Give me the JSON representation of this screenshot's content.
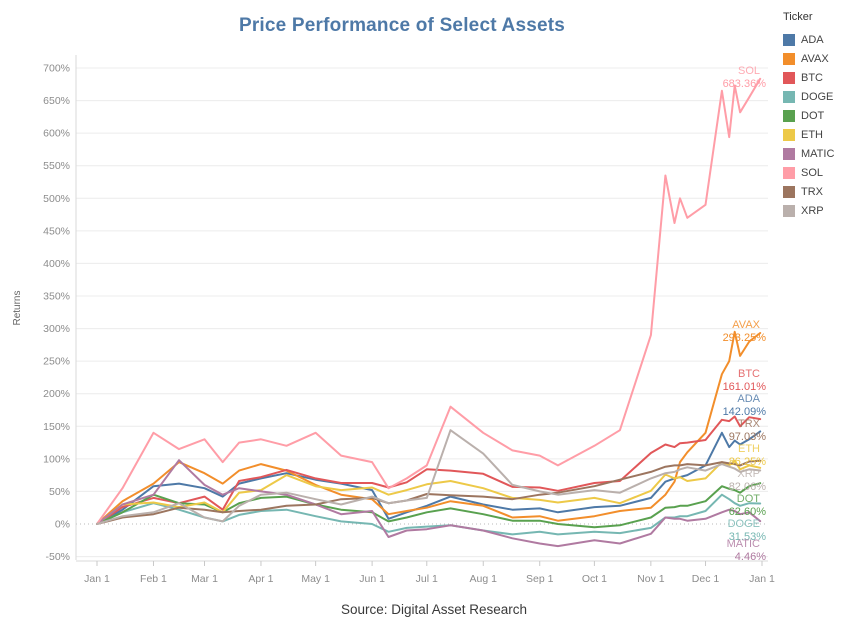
{
  "title": "Price Performance of Select Assets",
  "source": "Source: Digital Asset Research",
  "legend": {
    "title": "Ticker"
  },
  "chart_data": {
    "type": "line",
    "title": "Price Performance of Select Assets",
    "xlabel": "",
    "ylabel": "Returns",
    "legend_position": "top-right",
    "grid": "horizontal gridlines every 50%, dotted line at 0%",
    "ylim": [
      -75,
      720
    ],
    "y_tick_values": [
      700,
      650,
      600,
      550,
      500,
      450,
      400,
      350,
      300,
      250,
      200,
      150,
      100,
      50,
      0,
      -50
    ],
    "y_tick_labels": [
      "700%",
      "650%",
      "600%",
      "550%",
      "500%",
      "450%",
      "400%",
      "350%",
      "300%",
      "250%",
      "200%",
      "150%",
      "100%",
      "50%",
      "0%",
      "-50%"
    ],
    "x_tick_labels": [
      "Jan 1",
      "Feb 1",
      "Mar 1",
      "Apr 1",
      "May 1",
      "Jun 1",
      "Jul 1",
      "Aug 1",
      "Sep 1",
      "Oct 1",
      "Nov 1",
      "Dec 1",
      "Jan 1"
    ],
    "x_tick_days": [
      0,
      31,
      59,
      90,
      120,
      151,
      181,
      212,
      243,
      273,
      304,
      334,
      365
    ],
    "x": [
      "Jan 1",
      "Jan 15",
      "Feb 1",
      "Feb 15",
      "Mar 1",
      "Mar 11",
      "Mar 20",
      "Apr 1",
      "Apr 15",
      "May 1",
      "May 15",
      "Jun 1",
      "Jun 10",
      "Jun 20",
      "Jul 1",
      "Jul 14",
      "Aug 1",
      "Aug 17",
      "Sep 1",
      "Sep 11",
      "Oct 1",
      "Oct 15",
      "Nov 1",
      "Nov 9",
      "Nov 14",
      "Nov 17",
      "Nov 21",
      "Dec 1",
      "Dec 10",
      "Dec 14",
      "Dec 17",
      "Dec 20",
      "Dec 25",
      "Dec 31"
    ],
    "x_days": [
      0,
      14,
      31,
      45,
      59,
      69,
      78,
      90,
      104,
      120,
      134,
      151,
      160,
      170,
      181,
      194,
      212,
      228,
      243,
      253,
      273,
      287,
      304,
      312,
      317,
      320,
      324,
      334,
      343,
      347,
      350,
      353,
      358,
      364
    ],
    "units": "percent return since Jan 1",
    "series": [
      {
        "name": "ADA",
        "color": "#4e79a7",
        "end_label": "142.09%",
        "end_value": 142.09,
        "values": [
          0,
          22,
          58,
          62,
          55,
          42,
          62,
          70,
          78,
          68,
          62,
          52,
          8,
          18,
          28,
          42,
          30,
          22,
          24,
          18,
          26,
          28,
          40,
          65,
          70,
          72,
          75,
          90,
          140,
          118,
          128,
          122,
          130,
          142.09
        ]
      },
      {
        "name": "AVAX",
        "color": "#f28e2b",
        "end_label": "293.25%",
        "end_value": 293.25,
        "values": [
          0,
          35,
          62,
          95,
          78,
          62,
          82,
          92,
          82,
          60,
          45,
          38,
          15,
          20,
          25,
          35,
          28,
          10,
          12,
          5,
          12,
          20,
          25,
          45,
          65,
          95,
          110,
          140,
          230,
          250,
          295,
          258,
          280,
          293.25
        ]
      },
      {
        "name": "BTC",
        "color": "#e15759",
        "end_label": "161.01%",
        "end_value": 161.01,
        "values": [
          0,
          26,
          40,
          32,
          42,
          22,
          66,
          72,
          83,
          70,
          63,
          63,
          56,
          64,
          84,
          82,
          77,
          57,
          56,
          51,
          63,
          66,
          109,
          122,
          118,
          124,
          125,
          129,
          160,
          158,
          165,
          150,
          164,
          161.01
        ]
      },
      {
        "name": "DOGE",
        "color": "#76b7b2",
        "end_label": "31.53%",
        "end_value": 31.53,
        "values": [
          0,
          18,
          32,
          22,
          10,
          4,
          14,
          20,
          22,
          12,
          4,
          0,
          -12,
          -6,
          -4,
          -2,
          -10,
          -16,
          -12,
          -16,
          -12,
          -14,
          -6,
          10,
          10,
          12,
          12,
          20,
          45,
          38,
          32,
          28,
          32,
          31.53
        ]
      },
      {
        "name": "DOT",
        "color": "#59a14f",
        "end_label": "62.60%",
        "end_value": 62.6,
        "values": [
          0,
          18,
          45,
          32,
          30,
          18,
          32,
          40,
          42,
          30,
          22,
          18,
          4,
          10,
          18,
          24,
          15,
          5,
          5,
          0,
          -5,
          -2,
          10,
          25,
          26,
          28,
          28,
          35,
          58,
          54,
          52,
          48,
          58,
          62.6
        ]
      },
      {
        "name": "ETH",
        "color": "#edc948",
        "end_label": "86.25%",
        "end_value": 86.25,
        "values": [
          0,
          30,
          33,
          26,
          33,
          18,
          48,
          52,
          75,
          58,
          52,
          56,
          45,
          52,
          61,
          66,
          55,
          40,
          37,
          33,
          40,
          32,
          51,
          76,
          70,
          72,
          66,
          70,
          95,
          90,
          97,
          84,
          90,
          86.25
        ]
      },
      {
        "name": "MATIC",
        "color": "#b07aa1",
        "end_label": "4.46%",
        "end_value": 4.46,
        "values": [
          0,
          30,
          45,
          98,
          60,
          45,
          55,
          50,
          45,
          30,
          15,
          20,
          -20,
          -10,
          -8,
          -2,
          -10,
          -22,
          -30,
          -34,
          -25,
          -30,
          -15,
          10,
          8,
          8,
          5,
          8,
          18,
          22,
          20,
          15,
          18,
          4.46
        ]
      },
      {
        "name": "SOL",
        "color": "#ff9da7",
        "end_label": "683.36%",
        "end_value": 683.36,
        "values": [
          0,
          55,
          140,
          115,
          130,
          95,
          125,
          130,
          120,
          140,
          105,
          95,
          55,
          70,
          90,
          180,
          140,
          113,
          105,
          90,
          120,
          144,
          290,
          535,
          462,
          500,
          470,
          490,
          665,
          594,
          673,
          632,
          655,
          683.36
        ]
      },
      {
        "name": "TRX",
        "color": "#9c755f",
        "end_label": "97.03%",
        "end_value": 97.03,
        "values": [
          0,
          10,
          15,
          25,
          22,
          18,
          20,
          22,
          28,
          30,
          38,
          40,
          32,
          36,
          46,
          44,
          42,
          38,
          45,
          48,
          58,
          68,
          80,
          88,
          90,
          90,
          92,
          90,
          95,
          93,
          92,
          90,
          96,
          97.03
        ]
      },
      {
        "name": "XRP",
        "color": "#bab0ac",
        "end_label": "82.06%",
        "end_value": 82.06,
        "values": [
          0,
          12,
          18,
          32,
          10,
          4,
          28,
          45,
          48,
          38,
          30,
          42,
          32,
          36,
          40,
          144,
          108,
          60,
          50,
          45,
          52,
          48,
          70,
          78,
          80,
          84,
          87,
          82,
          92,
          88,
          85,
          80,
          84,
          82.06
        ]
      }
    ]
  }
}
